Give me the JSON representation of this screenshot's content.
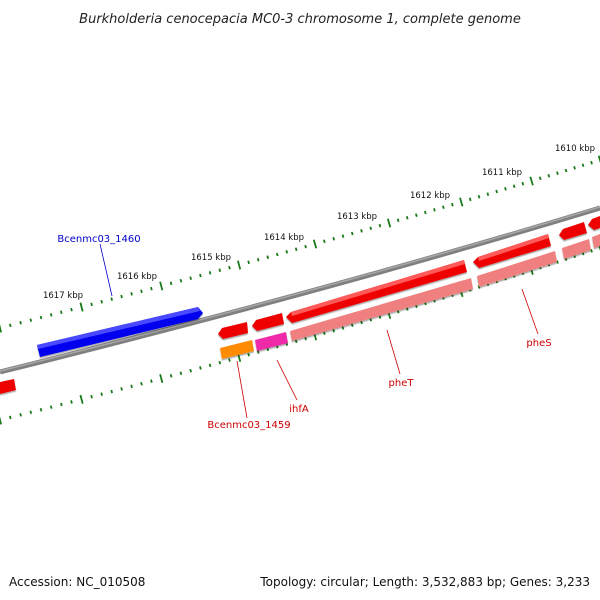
{
  "title": "Burkholderia cenocepacia MC0-3 chromosome 1, complete genome",
  "footer": {
    "accession": "Accession: NC_010508",
    "summary": "Topology: circular; Length: 3,532,883 bp; Genes: 3,233"
  },
  "ticks": [
    "1610 kbp",
    "1611 kbp",
    "1612 kbp",
    "1613 kbp",
    "1614 kbp",
    "1615 kbp",
    "1616 kbp",
    "1617 kbp"
  ],
  "labels": {
    "bcenmc03_1460": "Bcenmc03_1460",
    "bcenmc03_1459": "Bcenmc03_1459",
    "ihfA": "ihfA",
    "pheT": "pheT",
    "pheS": "pheS"
  },
  "colors": {
    "backbone": "#808080",
    "tick": "#1a7a1a",
    "forward_gene": "#0000ee",
    "reverse_gene": "#ee0000",
    "reverse_cds": "#f08080",
    "orange_feature": "#ff8c00",
    "pink_feature": "#ee2aa8",
    "reverse_label": "#cc0000",
    "forward_label": "#0000cc"
  }
}
